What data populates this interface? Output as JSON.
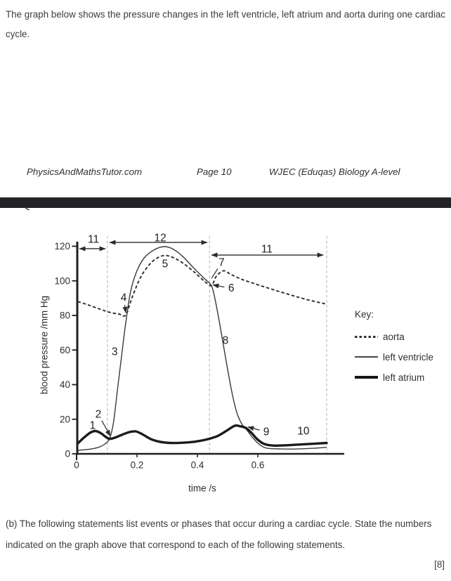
{
  "page": {
    "intro_lines": [
      "The graph below shows the pressure changes in the left ventricle, left atrium and aorta during one cardiac",
      "cycle."
    ],
    "footer": {
      "site": "PhysicsAndMathsTutor.com",
      "page": "Page 10",
      "course": "WJEC (Eduqas) Biology A-level"
    },
    "nav_chevron": "<",
    "question_lines": [
      "(b) The following statements list events or phases that occur during a cardiac cycle. State the numbers",
      "indicated on the graph above that correspond to each of the following statements."
    ],
    "marks": "[8]"
  },
  "key": {
    "title": "Key:",
    "items": [
      {
        "label": "aorta",
        "style": "dashed"
      },
      {
        "label": "left ventricle",
        "style": "thin"
      },
      {
        "label": "left atrium",
        "style": "thick"
      }
    ]
  },
  "colors": {
    "divider_bar": "#232327",
    "curve": "#2b2b2b",
    "phase_line": "#b3b3b3"
  },
  "chart_data": {
    "type": "line",
    "title": "",
    "xlabel": "time /s",
    "ylabel": "blood pressure /mm Hg",
    "xlim": [
      0,
      0.886
    ],
    "ylim": [
      0,
      126
    ],
    "x_ticks": [
      0,
      0.2,
      0.4,
      0.6
    ],
    "y_ticks": [
      0,
      20,
      40,
      60,
      80,
      100,
      120
    ],
    "grid": false,
    "legend_position": "right",
    "phase_lines_t": [
      0.102,
      0.44,
      0.828
    ],
    "series": [
      {
        "name": "aorta",
        "style": "dashed",
        "points": [
          [
            0.004,
            88
          ],
          [
            0.04,
            86
          ],
          [
            0.08,
            83.5
          ],
          [
            0.11,
            81.8
          ],
          [
            0.14,
            80.8
          ],
          [
            0.163,
            80.3
          ],
          [
            0.185,
            91
          ],
          [
            0.215,
            103
          ],
          [
            0.25,
            111
          ],
          [
            0.285,
            114.5
          ],
          [
            0.315,
            113.8
          ],
          [
            0.35,
            110.5
          ],
          [
            0.39,
            105
          ],
          [
            0.425,
            99.5
          ],
          [
            0.447,
            97.3
          ],
          [
            0.462,
            102.5
          ],
          [
            0.486,
            105.8
          ],
          [
            0.51,
            103.8
          ],
          [
            0.545,
            101
          ],
          [
            0.59,
            98.3
          ],
          [
            0.64,
            95.5
          ],
          [
            0.7,
            92.3
          ],
          [
            0.76,
            89.3
          ],
          [
            0.828,
            86.5
          ]
        ]
      },
      {
        "name": "left ventricle",
        "style": "thin",
        "points": [
          [
            0.004,
            2
          ],
          [
            0.04,
            2.6
          ],
          [
            0.07,
            3.6
          ],
          [
            0.092,
            5.5
          ],
          [
            0.109,
            8.8
          ],
          [
            0.122,
            18
          ],
          [
            0.136,
            38
          ],
          [
            0.15,
            58
          ],
          [
            0.163,
            76
          ],
          [
            0.178,
            93
          ],
          [
            0.198,
            105
          ],
          [
            0.225,
            113.5
          ],
          [
            0.258,
            118
          ],
          [
            0.29,
            119.8
          ],
          [
            0.32,
            118.3
          ],
          [
            0.352,
            114
          ],
          [
            0.39,
            107
          ],
          [
            0.425,
            101
          ],
          [
            0.447,
            97
          ],
          [
            0.46,
            88
          ],
          [
            0.474,
            75
          ],
          [
            0.488,
            61
          ],
          [
            0.503,
            46
          ],
          [
            0.518,
            32.5
          ],
          [
            0.532,
            23
          ],
          [
            0.548,
            17
          ],
          [
            0.565,
            13.5
          ],
          [
            0.582,
            9.5
          ],
          [
            0.605,
            5.5
          ],
          [
            0.63,
            3.3
          ],
          [
            0.68,
            2.8
          ],
          [
            0.74,
            2.9
          ],
          [
            0.79,
            3.3
          ],
          [
            0.828,
            3.8
          ]
        ]
      },
      {
        "name": "left atrium",
        "style": "thick",
        "points": [
          [
            0.004,
            6
          ],
          [
            0.022,
            9
          ],
          [
            0.045,
            12.2
          ],
          [
            0.062,
            13.2
          ],
          [
            0.08,
            12
          ],
          [
            0.095,
            10
          ],
          [
            0.109,
            8.7
          ],
          [
            0.125,
            9.2
          ],
          [
            0.15,
            11
          ],
          [
            0.175,
            12.6
          ],
          [
            0.195,
            13
          ],
          [
            0.215,
            11.6
          ],
          [
            0.245,
            8.6
          ],
          [
            0.275,
            7
          ],
          [
            0.31,
            6.3
          ],
          [
            0.35,
            6.4
          ],
          [
            0.39,
            7
          ],
          [
            0.43,
            8.3
          ],
          [
            0.465,
            10.2
          ],
          [
            0.495,
            13.2
          ],
          [
            0.523,
            16.2
          ],
          [
            0.54,
            16
          ],
          [
            0.56,
            15
          ],
          [
            0.578,
            12.3
          ],
          [
            0.598,
            8.5
          ],
          [
            0.62,
            5.8
          ],
          [
            0.65,
            4.8
          ],
          [
            0.7,
            5
          ],
          [
            0.76,
            5.6
          ],
          [
            0.828,
            6.3
          ]
        ]
      }
    ],
    "point_labels": [
      {
        "label": "1",
        "t": 0.053,
        "p": 16.2
      },
      {
        "label": "2",
        "t": 0.072,
        "p": 22.7,
        "arrow": {
          "t": 0.112,
          "p": 10.3
        }
      },
      {
        "label": "3",
        "t": 0.126,
        "p": 58.9
      },
      {
        "label": "4",
        "t": 0.156,
        "p": 90.2,
        "arrow": {
          "t": 0.163,
          "p": 81.5
        }
      },
      {
        "label": "5",
        "t": 0.293,
        "p": 109.6
      },
      {
        "label": "6",
        "t": 0.512,
        "p": 95.6,
        "arrow": {
          "t": 0.451,
          "p": 97.7
        }
      },
      {
        "label": "7",
        "t": 0.48,
        "p": 110.5,
        "arrow": {
          "t": 0.447,
          "p": 101.5,
          "head": false
        }
      },
      {
        "label": "8",
        "t": 0.493,
        "p": 65.4
      },
      {
        "label": "9",
        "t": 0.628,
        "p": 12.6,
        "arrow": {
          "t": 0.567,
          "p": 15.6
        }
      },
      {
        "label": "10",
        "t": 0.751,
        "p": 13
      }
    ],
    "span_arrows": [
      {
        "label": "11",
        "t1": 0.007,
        "t2": 0.098,
        "p": 118.6,
        "label_t": 0.056,
        "label_p": 123.9
      },
      {
        "label": "12",
        "t1": 0.107,
        "t2": 0.435,
        "p": 122.2,
        "label_t": 0.277,
        "label_p": 124.7
      },
      {
        "label": "11",
        "t1": 0.444,
        "t2": 0.819,
        "p": 114.9,
        "label_t": 0.63,
        "label_p": 118.2
      }
    ]
  }
}
